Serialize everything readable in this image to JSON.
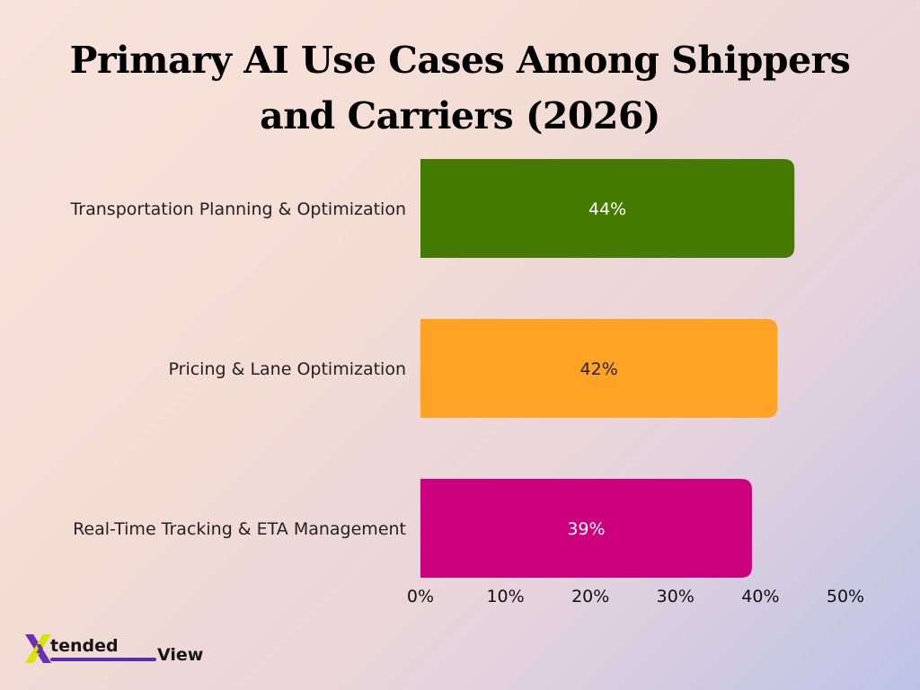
{
  "chart_data": {
    "type": "bar",
    "orientation": "horizontal",
    "title": "Primary AI Use Cases Among Shippers and Carriers (2026)",
    "categories": [
      "Transportation Planning & Optimization",
      "Pricing & Lane Optimization",
      "Real-Time Tracking & ETA Management"
    ],
    "values": [
      44,
      42,
      39
    ],
    "data_labels": [
      "44%",
      "42%",
      "39%"
    ],
    "colors": [
      "#447a00",
      "#fea325",
      "#cc007c"
    ],
    "label_colors": [
      "#ffffff",
      "#222222",
      "#ffffff"
    ],
    "xlim": [
      0,
      50
    ],
    "xticks": [
      0,
      10,
      20,
      30,
      40,
      50
    ],
    "xtick_labels": [
      "0%",
      "10%",
      "20%",
      "30%",
      "40%",
      "50%"
    ],
    "grid": false,
    "legend": "none"
  },
  "branding": {
    "logo_text_1": "tended",
    "logo_text_2": "View"
  }
}
